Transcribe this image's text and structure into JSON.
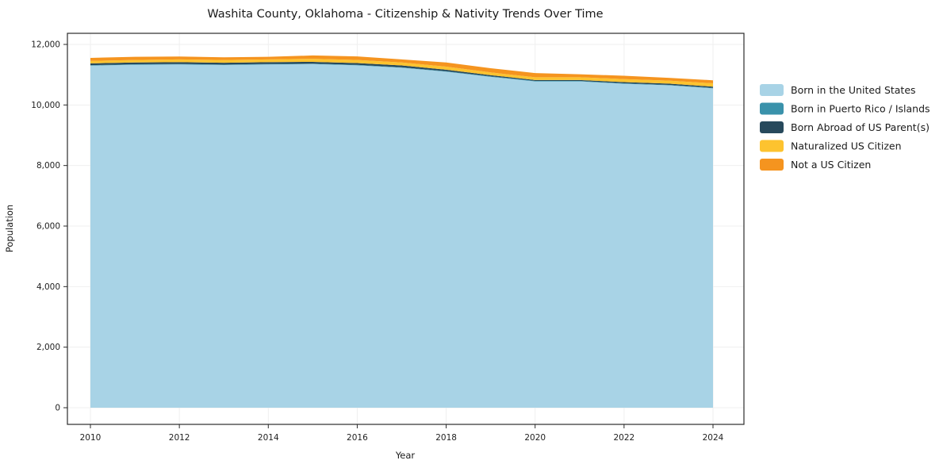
{
  "title": "Washita County, Oklahoma - Citizenship & Nativity Trends Over Time",
  "xlabel": "Year",
  "ylabel": "Population",
  "axis_color": "#2b2b2b",
  "grid_color": "#efefef",
  "chart_data": {
    "type": "area",
    "stacked": true,
    "title": "Washita County, Oklahoma - Citizenship & Nativity Trends Over Time",
    "xlabel": "Year",
    "ylabel": "Population",
    "ylim": [
      0,
      12000
    ],
    "yticks": [
      0,
      2000,
      4000,
      6000,
      8000,
      10000,
      12000
    ],
    "xticks": [
      2010,
      2012,
      2014,
      2016,
      2018,
      2020,
      2022,
      2024
    ],
    "grid": true,
    "legend_position": "right",
    "x": [
      2010,
      2011,
      2012,
      2013,
      2014,
      2015,
      2016,
      2017,
      2018,
      2019,
      2020,
      2021,
      2022,
      2023,
      2024
    ],
    "series": [
      {
        "name": "Born in the United States",
        "color": "#a8d3e6",
        "values": [
          11300,
          11330,
          11340,
          11320,
          11340,
          11350,
          11310,
          11230,
          11100,
          10930,
          10780,
          10780,
          10700,
          10650,
          10550
        ]
      },
      {
        "name": "Born in Puerto Rico / Islands",
        "color": "#3a92ab",
        "values": [
          15,
          15,
          15,
          15,
          15,
          15,
          15,
          15,
          15,
          15,
          15,
          15,
          15,
          15,
          15
        ]
      },
      {
        "name": "Born Abroad of US Parent(s)",
        "color": "#27495c",
        "values": [
          60,
          60,
          60,
          60,
          60,
          60,
          60,
          60,
          50,
          40,
          30,
          30,
          40,
          40,
          40
        ]
      },
      {
        "name": "Naturalized US Citizen",
        "color": "#fdc32f",
        "values": [
          80,
          80,
          90,
          90,
          90,
          100,
          100,
          100,
          100,
          90,
          90,
          90,
          100,
          100,
          110
        ]
      },
      {
        "name": "Not a US Citizen",
        "color": "#f5941f",
        "values": [
          100,
          105,
          95,
          90,
          85,
          110,
          120,
          100,
          140,
          140,
          140,
          100,
          110,
          90,
          100
        ]
      }
    ]
  }
}
